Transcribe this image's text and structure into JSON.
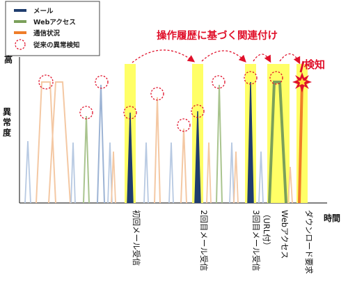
{
  "legend": {
    "items": [
      {
        "label": "メール",
        "color": "#1f3d6e",
        "shape": "line"
      },
      {
        "label": "Webアクセス",
        "color": "#7ba05b",
        "shape": "line"
      },
      {
        "label": "通信状況",
        "color": "#ef7d29",
        "shape": "line"
      },
      {
        "label": "従来の異常検知",
        "color": "#e0102a",
        "shape": "dashed-circle"
      }
    ]
  },
  "title": "操作履歴に基づく関連付け",
  "detect_label": "検知",
  "axes": {
    "y_high": "高",
    "y_label": [
      "異",
      "常",
      "度"
    ],
    "x_label": "時間"
  },
  "events": [
    {
      "label": "初回メール受信"
    },
    {
      "label": "2回目メール受信"
    },
    {
      "label": "3回目メール受信",
      "sub": "（URL付）"
    },
    {
      "label": "Webアクセス"
    },
    {
      "label": "ダウンロード要求"
    }
  ],
  "colors": {
    "mail": "#1f3d6e",
    "web": "#7ba05b",
    "comm": "#ef7d29",
    "highlight": "#ffff66",
    "accent": "#e0102a",
    "faint_blue": "#b7c9e2",
    "faint_green": "#a9c48e",
    "faint_orange": "#f4c8a3",
    "faint_blue_mid": "#9cb3d4"
  }
}
